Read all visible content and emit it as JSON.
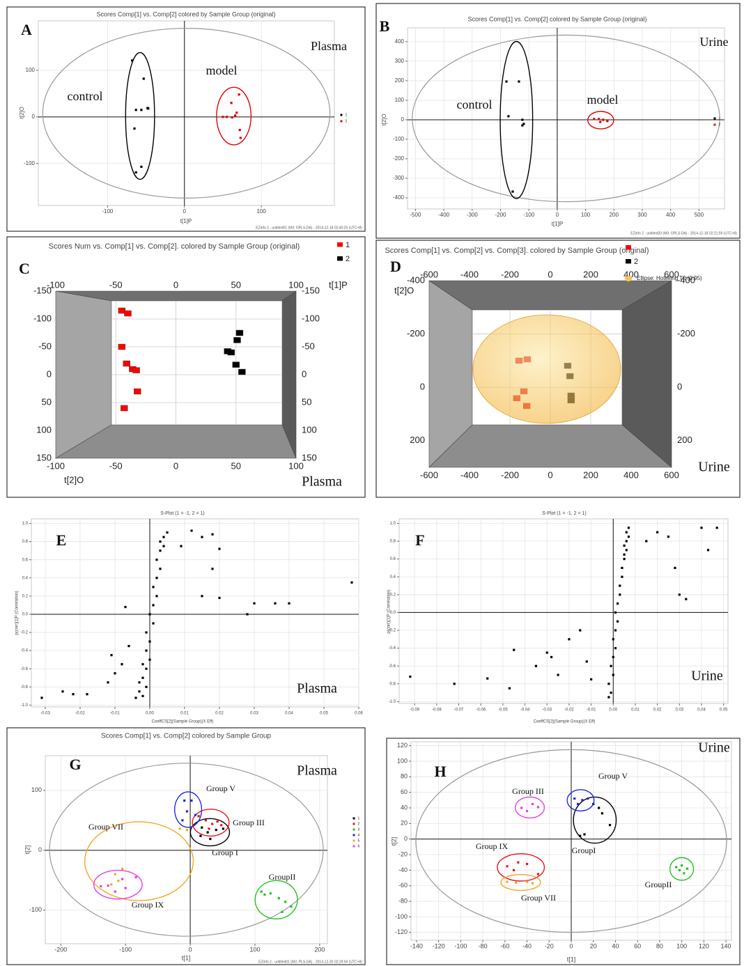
{
  "chart_data": [
    {
      "type": "scatter",
      "title": "Scores Comp[1] vs. Comp[2] colored by Sample Group (original)",
      "xlabel": "t[1]P",
      "ylabel": "t[2]O",
      "footer": "EZinfo 2 - untitled01 (M3: OPLS-DA) - 2014-12-18 02:40:20 (UTC+8)",
      "xlim": [
        -190,
        195
      ],
      "xticks": [
        -100,
        0,
        100
      ],
      "ylim": [
        -190,
        206
      ],
      "yticks": [
        -100,
        0,
        100
      ],
      "grid": true,
      "zero_lines": true,
      "hotelling_ellipse": true,
      "group_ellipses": true,
      "legend": "right",
      "annotations": [
        "A",
        "Plasma",
        "model",
        "control"
      ],
      "series": [
        {
          "name": "1",
          "color": "#000000",
          "x": [
            -68,
            -53,
            -48,
            -56,
            -63,
            -65,
            -56,
            -63,
            -47
          ],
          "values": [
            121,
            82,
            19,
            15,
            15,
            -25,
            -107,
            -119,
            18
          ]
        },
        {
          "name": "2",
          "color": "#e00000",
          "x": [
            71,
            61,
            68,
            50,
            55,
            62,
            66,
            72,
            73
          ],
          "values": [
            48,
            30,
            9,
            0,
            0,
            -1,
            3,
            -28,
            -45
          ]
        }
      ]
    },
    {
      "type": "scatter",
      "title": "Scores Comp[1] vs. Comp[2] colored by Sample Group (original)",
      "xlabel": "t[1]P",
      "ylabel": "t[2]O",
      "footer": "EZinfo 2 - untitled20 (M3: OPLS-DA) - 2014-12-18 02:21:59 (UTC+8)",
      "xlim": [
        -528,
        590
      ],
      "xticks": [
        -500,
        -400,
        -300,
        -200,
        -100,
        0,
        100,
        200,
        300,
        400,
        500
      ],
      "ylim": [
        -457,
        471
      ],
      "yticks": [
        -400,
        -300,
        -200,
        -100,
        0,
        100,
        200,
        300,
        400
      ],
      "grid": true,
      "zero_lines": true,
      "hotelling_ellipse": true,
      "group_ellipses": true,
      "legend": "right",
      "annotations": [
        "B",
        "Urine",
        "control",
        "model"
      ],
      "series": [
        {
          "name": "1",
          "color": "#000000",
          "x": [
            -179,
            -135,
            -172,
            -123,
            -118,
            -123,
            -157
          ],
          "values": [
            196,
            196,
            18,
            0,
            -21,
            -29,
            -368
          ]
        },
        {
          "name": "2",
          "color": "#e00000",
          "x": [
            130,
            147,
            162,
            177,
            152
          ],
          "values": [
            4,
            4,
            0,
            -7,
            -11
          ]
        }
      ]
    },
    {
      "type": "scatter3d",
      "title": "Scores Num vs. Comp[1] vs. Comp[2]. colored by Sample Group (original)",
      "xlabel": "t[1]P",
      "ylabel": "t[2]O",
      "xlim": [
        -100,
        100
      ],
      "xticks": [
        -100,
        -50,
        0,
        50,
        100
      ],
      "ylim": [
        -150,
        150
      ],
      "yticks": [
        -150,
        -100,
        -50,
        0,
        50,
        100,
        150
      ],
      "y_inverted": true,
      "grid": true,
      "legend": "top-right",
      "annotations": [
        "C",
        "Plasma"
      ],
      "series": [
        {
          "name": "1",
          "color": "#ff0000",
          "x": [
            -45,
            -40,
            -45,
            -41,
            -36,
            -33,
            -32,
            -43
          ],
          "values": [
            -115,
            -110,
            -50,
            -20,
            -10,
            -8,
            30,
            60
          ]
        },
        {
          "name": "2",
          "color": "#000000",
          "x": [
            53,
            51,
            43,
            46,
            50,
            55
          ],
          "values": [
            -75,
            -62,
            -42,
            -40,
            -18,
            -5
          ]
        }
      ]
    },
    {
      "type": "scatter3d",
      "title": "Scores Comp[1] vs. Comp[2] vs. Comp[3]. colored by Sample Group (original)",
      "ylabel": "t[2]O",
      "ellipse_label": "Ellipse: Hotelling T2 (0.95)",
      "xlim": [
        -600,
        600
      ],
      "xticks": [
        -600,
        -400,
        -200,
        0,
        200,
        400,
        600
      ],
      "ylim": [
        -400,
        300
      ],
      "yticks": [
        -400,
        -200,
        0,
        200
      ],
      "y_inverted": true,
      "grid": true,
      "legend": "top-right",
      "hotelling_ellipse": true,
      "annotations": [
        "D",
        "Urine"
      ],
      "series": [
        {
          "color": "#ff0000",
          "x": [
            -155,
            -114,
            -131,
            -166,
            -117
          ],
          "values": [
            -100,
            -105,
            15,
            41,
            70
          ]
        },
        {
          "name": "2",
          "color": "#000000",
          "x": [
            86,
            97,
            103,
            103
          ],
          "values": [
            -81,
            -42,
            31,
            49
          ]
        }
      ]
    },
    {
      "type": "scatter",
      "title": "S-Plot (1 = -1, 2 = 1)",
      "xlabel": "CoeffCS[2](Sample Group)(X Eff)",
      "ylabel": "p(corr)[1]P (Correlation)",
      "xlim": [
        -0.034,
        0.06
      ],
      "xticks": [
        -0.03,
        -0.02,
        -0.01,
        {
          "value": 0,
          "label": "0.00"
        },
        0.01,
        0.02,
        0.03,
        0.04,
        0.05,
        0.06
      ],
      "ylim": [
        -1.02,
        1.05
      ],
      "yticks": [
        {
          "value": -1,
          "label": "-1.0"
        },
        -0.8,
        -0.6,
        -0.4,
        -0.2,
        {
          "value": 0,
          "label": "0.0"
        },
        0.2,
        0.4,
        0.6,
        0.8,
        {
          "value": 1,
          "label": "1.0"
        }
      ],
      "grid": true,
      "zero_lines": true,
      "annotations": [
        "E",
        "Plasma"
      ],
      "series": [
        {
          "color": "#000000",
          "x": [
            -0.004,
            -0.002,
            -0.003,
            -0.001,
            -0.003,
            -0.002,
            -0.001,
            -0.002,
            0.0,
            -0.001,
            0.0,
            -0.001,
            0.001,
            0.0,
            0.001,
            0.002,
            0.001,
            0.002,
            0.003,
            0.002,
            0.003,
            0.004,
            0.003,
            0.004,
            0.005,
            -0.031,
            -0.025,
            -0.022,
            -0.018,
            -0.012,
            -0.01,
            -0.008,
            -0.011,
            -0.006,
            -0.007,
            0.012,
            0.015,
            0.018,
            0.02,
            0.018,
            0.015,
            0.02,
            0.03,
            0.036,
            0.04,
            0.028,
            0.058,
            0.009
          ],
          "values": [
            -0.92,
            -0.9,
            -0.85,
            -0.8,
            -0.75,
            -0.7,
            -0.6,
            -0.55,
            -0.5,
            -0.4,
            -0.3,
            -0.2,
            -0.1,
            0.0,
            0.1,
            0.2,
            0.3,
            0.4,
            0.5,
            0.6,
            0.7,
            0.75,
            0.8,
            0.85,
            0.9,
            -0.92,
            -0.85,
            -0.88,
            -0.88,
            -0.75,
            -0.65,
            -0.55,
            -0.45,
            -0.35,
            0.08,
            0.92,
            0.85,
            0.88,
            0.72,
            0.5,
            0.2,
            0.18,
            0.12,
            0.12,
            0.12,
            0.0,
            0.35,
            0.75
          ]
        }
      ]
    },
    {
      "type": "scatter",
      "title": "S-Plot (1 = -1, 2 = 1)",
      "xlabel": "CoeffCS[2](Sample Group)(X Eff)",
      "ylabel": "p(corr)[1]P (Correlation)",
      "xlim": [
        -0.097,
        0.052
      ],
      "xticks": [
        -0.09,
        -0.08,
        -0.07,
        -0.06,
        -0.05,
        -0.04,
        -0.03,
        -0.02,
        -0.01,
        {
          "value": 0,
          "label": "0.00"
        },
        0.01,
        0.02,
        0.03,
        0.04,
        0.05
      ],
      "ylim": [
        -1.02,
        1.05
      ],
      "yticks": [
        {
          "value": -1,
          "label": "-1.0"
        },
        -0.8,
        -0.6,
        -0.4,
        -0.2,
        {
          "value": 0,
          "label": "0.0"
        },
        0.2,
        0.4,
        0.6,
        0.8,
        {
          "value": 1,
          "label": "1.0"
        }
      ],
      "grid": true,
      "zero_lines": true,
      "annotations": [
        "F",
        "Urine"
      ],
      "series": [
        {
          "color": "#000000",
          "x": [
            -0.002,
            -0.001,
            -0.002,
            0.0,
            -0.001,
            0.0,
            0.001,
            0.0,
            0.001,
            0.002,
            0.001,
            0.002,
            0.003,
            0.003,
            0.004,
            0.004,
            0.005,
            0.005,
            0.006,
            0.005,
            0.006,
            0.007,
            0.006,
            0.007,
            -0.092,
            -0.072,
            -0.057,
            -0.045,
            -0.047,
            -0.035,
            -0.03,
            -0.028,
            -0.025,
            -0.02,
            -0.015,
            -0.012,
            -0.01,
            0.02,
            0.04,
            0.047,
            0.043,
            0.028,
            0.03,
            0.033,
            0.015,
            0.025
          ],
          "values": [
            -0.95,
            -0.9,
            -0.8,
            -0.7,
            -0.6,
            -0.5,
            -0.4,
            -0.3,
            -0.2,
            -0.1,
            0.0,
            0.1,
            0.2,
            0.3,
            0.4,
            0.5,
            0.6,
            0.65,
            0.7,
            0.75,
            0.8,
            0.85,
            0.9,
            0.95,
            -0.72,
            -0.8,
            -0.74,
            -0.42,
            -0.85,
            -0.6,
            -0.45,
            -0.5,
            -0.7,
            -0.3,
            -0.2,
            -0.55,
            -0.75,
            0.9,
            0.95,
            0.95,
            0.7,
            0.5,
            0.2,
            0.15,
            0.8,
            0.85
          ]
        }
      ]
    },
    {
      "type": "scatter",
      "title": "Scores Comp[1] vs. Comp[2] colored by Sample Group",
      "xlabel": "t[1]",
      "ylabel": "t[2]",
      "footer": "EZinfo 2 - untitled01 (M3: PLS-DA) - 2014-12-20 02:29:04 (UTC+8)",
      "xlim": [
        -224,
        212
      ],
      "xticks": [
        -200,
        -100,
        0,
        100,
        200
      ],
      "ylim": [
        -156,
        158
      ],
      "yticks": [
        -100,
        0,
        100
      ],
      "grid": true,
      "zero_lines": true,
      "hotelling_ellipse": true,
      "group_ellipses": true,
      "legend": "right",
      "annotations": [
        "G",
        "Plasma",
        "Group V",
        "Group III",
        "Group I",
        "Group VII",
        "GroupII",
        "Group IX"
      ],
      "series": [
        {
          "name": "1",
          "color": "#000000",
          "x": [
            18,
            27,
            40,
            16,
            31,
            51
          ],
          "values": [
            38,
            30,
            34,
            24,
            19,
            36
          ]
        },
        {
          "name": "2",
          "color": "#e8141e",
          "x": [
            13,
            24,
            34,
            48,
            42,
            29
          ],
          "values": [
            57,
            50,
            44,
            42,
            48,
            36
          ]
        },
        {
          "name": "3",
          "color": "#21c21c",
          "x": [
            110,
            124,
            137,
            147,
            156,
            142,
            115
          ],
          "values": [
            -69,
            -72,
            -80,
            -86,
            -94,
            -103,
            -74
          ]
        },
        {
          "name": "4",
          "color": "#1e28e6",
          "x": [
            -9,
            2,
            -5,
            -12,
            8
          ],
          "values": [
            83,
            83,
            65,
            50,
            59
          ]
        },
        {
          "name": "5",
          "color": "#f5a623",
          "x": [
            -16,
            -5,
            -116,
            -122,
            -111,
            -105
          ],
          "values": [
            36,
            34,
            -40,
            -57,
            -51,
            -31
          ]
        },
        {
          "name": "6",
          "color": "#e040e8",
          "x": [
            -138,
            -127,
            -105,
            -84,
            -100,
            -116
          ],
          "values": [
            -60,
            -59,
            -48,
            -45,
            -63,
            -69
          ]
        }
      ]
    },
    {
      "type": "scatter",
      "xlabel": "t[1]",
      "ylabel": "t[2]",
      "xlim": [
        -145,
        145
      ],
      "xticks": [
        -140,
        -120,
        -100,
        -80,
        -60,
        -40,
        -20,
        0,
        20,
        40,
        60,
        80,
        100,
        120,
        140
      ],
      "ylim": [
        -130,
        125
      ],
      "yticks": [
        -120,
        -100,
        -80,
        -60,
        -40,
        -20,
        0,
        20,
        40,
        60,
        80,
        100,
        120
      ],
      "grid": true,
      "zero_lines": true,
      "hotelling_ellipse": true,
      "group_ellipses": true,
      "annotations": [
        "Urine",
        "H",
        "Group V",
        "Group III",
        "GroupI",
        "Group IX",
        "Group VII",
        "GroupII"
      ],
      "series": [
        {
          "color": "#000000",
          "x": [
            20,
            25,
            28,
            12,
            35,
            8
          ],
          "values": [
            45,
            40,
            33,
            6,
            18,
            4
          ]
        },
        {
          "color": "#1e28e6",
          "x": [
            3,
            10,
            15,
            6
          ],
          "values": [
            52,
            50,
            52,
            45
          ]
        },
        {
          "color": "#e040e8",
          "x": [
            -45,
            -40,
            -35,
            -30
          ],
          "values": [
            40,
            36,
            45,
            41
          ]
        },
        {
          "color": "#e8141e",
          "x": [
            -58,
            -48,
            -40,
            -52,
            -30
          ],
          "values": [
            -35,
            -30,
            -32,
            -40,
            -45
          ]
        },
        {
          "color": "#f5a623",
          "x": [
            -58,
            -50,
            -40,
            -35
          ],
          "values": [
            -55,
            -56,
            -55,
            -57
          ]
        },
        {
          "color": "#21c21c",
          "x": [
            95,
            100,
            105,
            102,
            98
          ],
          "values": [
            -36,
            -34,
            -38,
            -44,
            -40
          ]
        }
      ]
    }
  ]
}
